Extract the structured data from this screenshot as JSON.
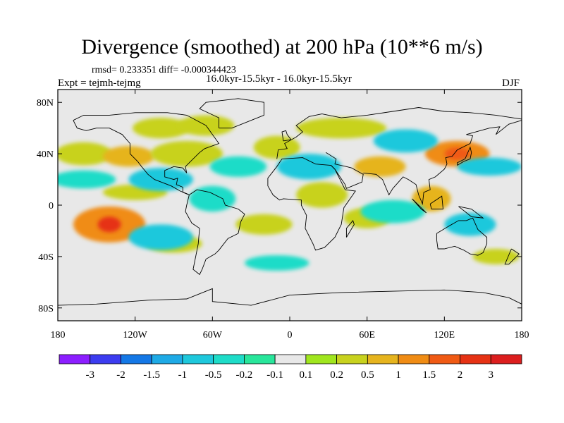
{
  "chart_data": {
    "type": "heatmap",
    "title": "Divergence (smoothed) at 200 hPa (10**6 m/s)",
    "stats_text": "rmsd= 0.233351 diff= -0.000344423",
    "left_label": "Expt = tejmh-tejmg",
    "center_label": "16.0kyr-15.5kyr - 16.0kyr-15.5kyr",
    "right_label": "DJF",
    "x_range": [
      -180,
      180
    ],
    "y_range": [
      -90,
      90
    ],
    "x_ticks": [
      {
        "value": -180,
        "label": "180"
      },
      {
        "value": -120,
        "label": "120W"
      },
      {
        "value": -60,
        "label": "60W"
      },
      {
        "value": 0,
        "label": "0"
      },
      {
        "value": 60,
        "label": "60E"
      },
      {
        "value": 120,
        "label": "120E"
      },
      {
        "value": 180,
        "label": "180"
      }
    ],
    "y_ticks": [
      {
        "value": 80,
        "label": "80N"
      },
      {
        "value": 40,
        "label": "40N"
      },
      {
        "value": 0,
        "label": "0"
      },
      {
        "value": -40,
        "label": "40S"
      },
      {
        "value": -80,
        "label": "80S"
      }
    ],
    "contour_levels": [
      "-3",
      "-2",
      "-1.5",
      "-1",
      "-0.5",
      "-0.2",
      "-0.1",
      "0.1",
      "0.2",
      "0.5",
      "1",
      "1.5",
      "2",
      "3"
    ],
    "colorbar_colors": [
      "#8c1eff",
      "#3c3cf0",
      "#1478e6",
      "#1eaae6",
      "#1ec8dc",
      "#1edcc8",
      "#28e69b",
      "#e8e8e8",
      "#a0e61e",
      "#c8d21e",
      "#e6b41e",
      "#f08c14",
      "#f05a14",
      "#e63214",
      "#dc1e1e"
    ],
    "blobs": [
      {
        "lon": -160,
        "lat": 40,
        "rx": 22,
        "ry": 9,
        "level": 9
      },
      {
        "lon": -125,
        "lat": 38,
        "rx": 20,
        "ry": 8,
        "level": 10
      },
      {
        "lon": -80,
        "lat": 40,
        "rx": 28,
        "ry": 10,
        "level": 9
      },
      {
        "lon": -100,
        "lat": 60,
        "rx": 22,
        "ry": 8,
        "level": 9
      },
      {
        "lon": -65,
        "lat": 62,
        "rx": 22,
        "ry": 8,
        "level": 9
      },
      {
        "lon": -10,
        "lat": 45,
        "rx": 18,
        "ry": 9,
        "level": 9
      },
      {
        "lon": 40,
        "lat": 60,
        "rx": 35,
        "ry": 8,
        "level": 9
      },
      {
        "lon": 130,
        "lat": 40,
        "rx": 25,
        "ry": 10,
        "level": 11
      },
      {
        "lon": 130,
        "lat": 40,
        "rx": 10,
        "ry": 5,
        "level": 12
      },
      {
        "lon": 70,
        "lat": 30,
        "rx": 20,
        "ry": 8,
        "level": 10
      },
      {
        "lon": 25,
        "lat": 8,
        "rx": 20,
        "ry": 10,
        "level": 9
      },
      {
        "lon": 60,
        "lat": -10,
        "rx": 18,
        "ry": 8,
        "level": 9
      },
      {
        "lon": -140,
        "lat": -15,
        "rx": 28,
        "ry": 14,
        "level": 11
      },
      {
        "lon": -140,
        "lat": -15,
        "rx": 9,
        "ry": 6,
        "level": 13
      },
      {
        "lon": -120,
        "lat": 10,
        "rx": 25,
        "ry": 6,
        "level": 9
      },
      {
        "lon": -20,
        "lat": -15,
        "rx": 22,
        "ry": 8,
        "level": 9
      },
      {
        "lon": -90,
        "lat": -30,
        "rx": 22,
        "ry": 7,
        "level": 9
      },
      {
        "lon": 160,
        "lat": -40,
        "rx": 18,
        "ry": 6,
        "level": 9
      },
      {
        "lon": 110,
        "lat": 5,
        "rx": 15,
        "ry": 10,
        "level": 10
      },
      {
        "lon": -160,
        "lat": 20,
        "rx": 25,
        "ry": 7,
        "level": 5
      },
      {
        "lon": -100,
        "lat": 20,
        "rx": 25,
        "ry": 9,
        "level": 4
      },
      {
        "lon": -40,
        "lat": 30,
        "rx": 22,
        "ry": 8,
        "level": 5
      },
      {
        "lon": 15,
        "lat": 30,
        "rx": 25,
        "ry": 10,
        "level": 4
      },
      {
        "lon": 90,
        "lat": 50,
        "rx": 25,
        "ry": 9,
        "level": 4
      },
      {
        "lon": 155,
        "lat": 30,
        "rx": 25,
        "ry": 7,
        "level": 4
      },
      {
        "lon": -100,
        "lat": -25,
        "rx": 25,
        "ry": 10,
        "level": 4
      },
      {
        "lon": -60,
        "lat": 5,
        "rx": 18,
        "ry": 10,
        "level": 5
      },
      {
        "lon": 80,
        "lat": -5,
        "rx": 25,
        "ry": 9,
        "level": 5
      },
      {
        "lon": 140,
        "lat": -15,
        "rx": 20,
        "ry": 9,
        "level": 4
      },
      {
        "lon": -10,
        "lat": -45,
        "rx": 25,
        "ry": 6,
        "level": 5
      }
    ],
    "coastlines": [
      [
        [
          -168,
          66
        ],
        [
          -160,
          70
        ],
        [
          -140,
          70
        ],
        [
          -120,
          72
        ],
        [
          -95,
          72
        ],
        [
          -80,
          70
        ],
        [
          -65,
          62
        ],
        [
          -60,
          55
        ],
        [
          -55,
          48
        ],
        [
          -66,
          44
        ],
        [
          -70,
          41
        ],
        [
          -76,
          35
        ],
        [
          -81,
          30
        ],
        [
          -80,
          25
        ],
        [
          -83,
          29
        ],
        [
          -90,
          30
        ],
        [
          -97,
          27
        ],
        [
          -97,
          22
        ],
        [
          -90,
          20
        ],
        [
          -87,
          21
        ],
        [
          -88,
          16
        ],
        [
          -83,
          14
        ],
        [
          -83,
          10
        ],
        [
          -78,
          8
        ],
        [
          -80,
          9
        ],
        [
          -85,
          11
        ],
        [
          -92,
          15
        ],
        [
          -105,
          20
        ],
        [
          -110,
          24
        ],
        [
          -115,
          30
        ],
        [
          -118,
          34
        ],
        [
          -124,
          40
        ],
        [
          -124,
          48
        ],
        [
          -130,
          55
        ],
        [
          -140,
          60
        ],
        [
          -150,
          60
        ],
        [
          -158,
          58
        ],
        [
          -165,
          60
        ],
        [
          -168,
          66
        ]
      ],
      [
        [
          -78,
          8
        ],
        [
          -72,
          12
        ],
        [
          -62,
          10
        ],
        [
          -52,
          5
        ],
        [
          -50,
          0
        ],
        [
          -40,
          -3
        ],
        [
          -35,
          -7
        ],
        [
          -38,
          -13
        ],
        [
          -40,
          -22
        ],
        [
          -48,
          -26
        ],
        [
          -55,
          -35
        ],
        [
          -58,
          -38
        ],
        [
          -65,
          -42
        ],
        [
          -68,
          -50
        ],
        [
          -70,
          -54
        ],
        [
          -75,
          -50
        ],
        [
          -73,
          -40
        ],
        [
          -71,
          -30
        ],
        [
          -70,
          -18
        ],
        [
          -76,
          -14
        ],
        [
          -81,
          -5
        ],
        [
          -80,
          0
        ],
        [
          -78,
          8
        ]
      ],
      [
        [
          -17,
          15
        ],
        [
          -17,
          21
        ],
        [
          -10,
          30
        ],
        [
          -6,
          36
        ],
        [
          10,
          37
        ],
        [
          20,
          32
        ],
        [
          32,
          31
        ],
        [
          35,
          28
        ],
        [
          43,
          12
        ],
        [
          51,
          11
        ],
        [
          42,
          -2
        ],
        [
          40,
          -15
        ],
        [
          35,
          -25
        ],
        [
          27,
          -33
        ],
        [
          20,
          -35
        ],
        [
          18,
          -30
        ],
        [
          12,
          -18
        ],
        [
          13,
          -8
        ],
        [
          9,
          0
        ],
        [
          9,
          4
        ],
        [
          -5,
          5
        ],
        [
          -8,
          4
        ],
        [
          -13,
          8
        ],
        [
          -17,
          15
        ]
      ],
      [
        [
          -10,
          36
        ],
        [
          -9,
          43
        ],
        [
          -2,
          44
        ],
        [
          -4,
          48
        ],
        [
          5,
          53
        ],
        [
          10,
          57
        ],
        [
          5,
          62
        ],
        [
          15,
          69
        ],
        [
          25,
          71
        ],
        [
          40,
          68
        ],
        [
          60,
          70
        ],
        [
          80,
          73
        ],
        [
          100,
          76
        ],
        [
          120,
          73
        ],
        [
          140,
          72
        ],
        [
          160,
          70
        ],
        [
          180,
          67
        ]
      ],
      [
        [
          28,
          41
        ],
        [
          36,
          36
        ],
        [
          35,
          32
        ],
        [
          44,
          30
        ],
        [
          48,
          29
        ],
        [
          57,
          24
        ],
        [
          56,
          18
        ],
        [
          44,
          13
        ],
        [
          43,
          16
        ],
        [
          35,
          28
        ],
        [
          32,
          31
        ]
      ],
      [
        [
          57,
          25
        ],
        [
          67,
          24
        ],
        [
          72,
          20
        ],
        [
          77,
          8
        ],
        [
          80,
          13
        ],
        [
          88,
          22
        ],
        [
          92,
          20
        ],
        [
          98,
          16
        ],
        [
          100,
          8
        ],
        [
          103,
          1
        ],
        [
          104,
          10
        ],
        [
          109,
          12
        ],
        [
          108,
          20
        ],
        [
          113,
          22
        ],
        [
          120,
          28
        ],
        [
          122,
          32
        ],
        [
          121,
          37
        ],
        [
          126,
          38
        ],
        [
          130,
          43
        ],
        [
          140,
          48
        ],
        [
          142,
          54
        ],
        [
          137,
          55
        ],
        [
          155,
          60
        ],
        [
          163,
          61
        ],
        [
          160,
          55
        ],
        [
          170,
          63
        ],
        [
          180,
          66
        ]
      ],
      [
        [
          114,
          -22
        ],
        [
          114,
          -27
        ],
        [
          115,
          -34
        ],
        [
          120,
          -34
        ],
        [
          128,
          -32
        ],
        [
          135,
          -35
        ],
        [
          140,
          -38
        ],
        [
          146,
          -39
        ],
        [
          150,
          -37
        ],
        [
          153,
          -30
        ],
        [
          153,
          -25
        ],
        [
          146,
          -19
        ],
        [
          142,
          -10
        ],
        [
          137,
          -12
        ],
        [
          131,
          -12
        ],
        [
          124,
          -16
        ],
        [
          114,
          -22
        ]
      ],
      [
        [
          -180,
          -78
        ],
        [
          -150,
          -77
        ],
        [
          -110,
          -74
        ],
        [
          -80,
          -73
        ],
        [
          -60,
          -65
        ],
        [
          -60,
          -75
        ],
        [
          -30,
          -78
        ],
        [
          0,
          -70
        ],
        [
          40,
          -68
        ],
        [
          80,
          -67
        ],
        [
          120,
          -66
        ],
        [
          150,
          -68
        ],
        [
          170,
          -72
        ],
        [
          180,
          -77
        ]
      ],
      [
        [
          -55,
          60
        ],
        [
          -45,
          60
        ],
        [
          -20,
          70
        ],
        [
          -20,
          80
        ],
        [
          -40,
          83
        ],
        [
          -65,
          80
        ],
        [
          -70,
          75
        ],
        [
          -55,
          68
        ],
        [
          -55,
          60
        ]
      ],
      [
        [
          -5,
          50
        ],
        [
          1,
          51
        ],
        [
          -2,
          55
        ],
        [
          -3,
          58
        ],
        [
          -6,
          57
        ],
        [
          -5,
          50
        ]
      ],
      [
        [
          130,
          31
        ],
        [
          135,
          34
        ],
        [
          140,
          36
        ],
        [
          141,
          41
        ],
        [
          140,
          45
        ],
        [
          136,
          36
        ],
        [
          130,
          33
        ],
        [
          130,
          31
        ]
      ],
      [
        [
          95,
          5
        ],
        [
          106,
          -6
        ],
        [
          102,
          -3
        ],
        [
          95,
          5
        ]
      ],
      [
        [
          109,
          1
        ],
        [
          118,
          7
        ],
        [
          119,
          -3
        ],
        [
          110,
          -3
        ],
        [
          109,
          1
        ]
      ],
      [
        [
          131,
          -1
        ],
        [
          141,
          -3
        ],
        [
          150,
          -10
        ],
        [
          141,
          -9
        ],
        [
          131,
          -1
        ]
      ],
      [
        [
          44,
          -25
        ],
        [
          50,
          -15
        ],
        [
          49,
          -12
        ],
        [
          44,
          -18
        ],
        [
          44,
          -25
        ]
      ],
      [
        [
          172,
          -34
        ],
        [
          178,
          -38
        ],
        [
          170,
          -46
        ],
        [
          167,
          -46
        ],
        [
          172,
          -34
        ]
      ]
    ]
  }
}
